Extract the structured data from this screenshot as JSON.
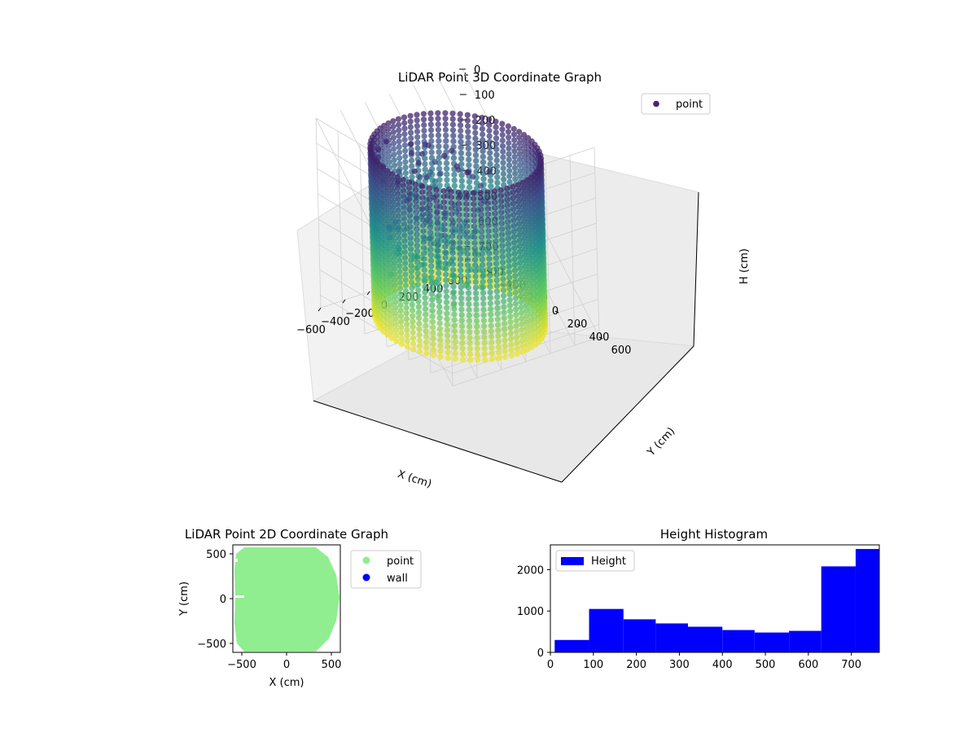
{
  "colors": {
    "legend_point_3d": "#482475",
    "point_2d": "#90ee90",
    "wall_2d": "#0000ff",
    "histogram_bar": "#0000ff",
    "pane_fill": "#f2f2f2",
    "grid": "#d0d0d0"
  },
  "chart_data": [
    {
      "type": "scatter",
      "subtype": "3d",
      "title": "LiDAR Point 3D Coordinate Graph",
      "xlabel": "X (cm)",
      "ylabel": "Y (cm)",
      "zlabel": "H (cm)",
      "xlim": [
        -600,
        600
      ],
      "ylim": [
        -600,
        600
      ],
      "zlim": [
        0,
        750
      ],
      "z_inverted": true,
      "x_ticks": [
        "−600",
        "−400",
        "−200",
        "0",
        "200",
        "400",
        "600"
      ],
      "y_ticks": [
        "−600",
        "−400",
        "−200",
        "0",
        "200",
        "400",
        "600"
      ],
      "z_ticks": [
        "0",
        "100",
        "200",
        "300",
        "400",
        "500",
        "600",
        "700"
      ],
      "colormap": "viridis",
      "legend": {
        "location": "upper right",
        "entries": [
          "point"
        ]
      },
      "wall": {
        "radius_cm": 520,
        "height_range_cm": [
          80,
          760
        ],
        "columns": 72
      },
      "grid": true
    },
    {
      "type": "scatter",
      "title": "LiDAR Point 2D Coordinate Graph",
      "xlabel": "X (cm)",
      "ylabel": "Y (cm)",
      "xlim": [
        -600,
        600
      ],
      "ylim": [
        -600,
        600
      ],
      "x_ticks": [
        "−500",
        "0",
        "500"
      ],
      "y_ticks": [
        "−500",
        "0",
        "500"
      ],
      "series": [
        {
          "name": "point",
          "color": "#90ee90",
          "shape": "filled disc of radius ≈ 560 cm centered near (0, 0)"
        },
        {
          "name": "wall",
          "color": "#0000ff"
        }
      ],
      "legend": {
        "location": "outside right",
        "entries": [
          "point",
          "wall"
        ]
      }
    },
    {
      "type": "bar",
      "subtype": "histogram",
      "title": "Height Histogram",
      "xlim": [
        0,
        765
      ],
      "ylim": [
        0,
        2600
      ],
      "x_ticks": [
        "0",
        "100",
        "200",
        "300",
        "400",
        "500",
        "600",
        "700"
      ],
      "y_ticks": [
        "0",
        "1000",
        "2000"
      ],
      "bin_edges": [
        10,
        90,
        170,
        245,
        320,
        400,
        475,
        555,
        630,
        710,
        765
      ],
      "values": [
        300,
        1050,
        800,
        700,
        620,
        540,
        480,
        520,
        2080,
        2500
      ],
      "legend": {
        "location": "upper left",
        "entries": [
          "Height"
        ]
      }
    }
  ]
}
